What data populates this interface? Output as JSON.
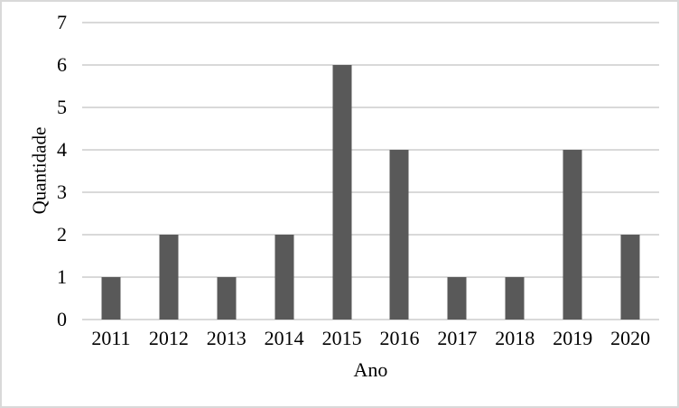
{
  "figure": {
    "background": "#ffffff",
    "border_color": "#d9d9d9",
    "text_color": "#000000"
  },
  "chart_data": {
    "type": "bar",
    "title": "",
    "xlabel": "Ano",
    "ylabel": "Quantidade",
    "categories": [
      "2011",
      "2012",
      "2013",
      "2014",
      "2015",
      "2016",
      "2017",
      "2018",
      "2019",
      "2020"
    ],
    "values": [
      1,
      2,
      1,
      2,
      6,
      4,
      1,
      1,
      4,
      2
    ],
    "ylim": [
      0,
      7
    ],
    "yticks": [
      0,
      1,
      2,
      3,
      4,
      5,
      6,
      7
    ],
    "grid": true,
    "legend": "none",
    "bar_color": "#595959",
    "gridline_color": "#d9d9d9"
  }
}
